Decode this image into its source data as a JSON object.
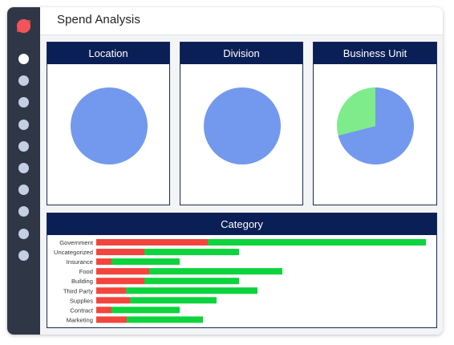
{
  "app": {
    "title": "Spend Analysis"
  },
  "sidebar": {
    "logo_icon": "planet-logo-icon",
    "logo_color": "#f2545b",
    "items": [
      {
        "icon": "nav-dot-icon",
        "active": true
      },
      {
        "icon": "nav-dot-icon",
        "active": false
      },
      {
        "icon": "nav-dot-icon",
        "active": false
      },
      {
        "icon": "nav-dot-icon",
        "active": false
      },
      {
        "icon": "nav-dot-icon",
        "active": false
      },
      {
        "icon": "nav-dot-icon",
        "active": false
      },
      {
        "icon": "nav-dot-icon",
        "active": false
      },
      {
        "icon": "nav-dot-icon",
        "active": false
      },
      {
        "icon": "nav-dot-icon",
        "active": false
      },
      {
        "icon": "nav-dot-icon",
        "active": false
      }
    ]
  },
  "colors": {
    "header_bg": "#0b1f57",
    "pie_blue": "#7399ee",
    "pie_green": "#7eec8a",
    "bar_red": "#f2453d",
    "bar_green": "#0dd43c"
  },
  "chart_data": [
    {
      "type": "pie",
      "title": "Location",
      "slices": [
        {
          "value": 100,
          "color": "#7399ee"
        }
      ]
    },
    {
      "type": "pie",
      "title": "Division",
      "slices": [
        {
          "value": 100,
          "color": "#7399ee"
        }
      ]
    },
    {
      "type": "pie",
      "title": "Business Unit",
      "slices": [
        {
          "value": 71,
          "color": "#7399ee"
        },
        {
          "value": 29,
          "color": "#7eec8a"
        }
      ]
    },
    {
      "type": "bar",
      "orientation": "horizontal",
      "stacked": true,
      "title": "Category",
      "categories": [
        "Government",
        "Uncategorized",
        "Insurance",
        "Food",
        "Building",
        "Third Party",
        "Supplies",
        "Contract",
        "Marketing"
      ],
      "series": [
        {
          "color": "#f2453d",
          "values": [
            139,
            60,
            19,
            66,
            60,
            37,
            42,
            19,
            38
          ]
        },
        {
          "color": "#0dd43c",
          "values": [
            272,
            118,
            85,
            166,
            118,
            164,
            108,
            85,
            95
          ]
        }
      ],
      "xlim": [
        0,
        420
      ],
      "grid": false
    }
  ]
}
